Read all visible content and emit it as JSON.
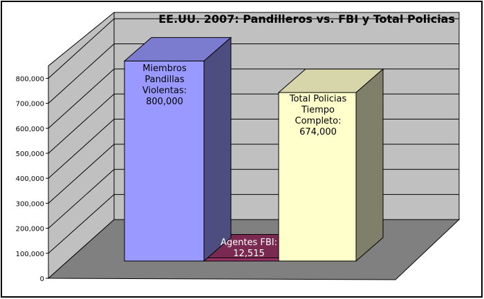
{
  "chart_data": {
    "type": "bar",
    "title": "EE.UU. 2007: Pandilleros vs. FBI y Total Policias",
    "xlabel": "",
    "ylabel": "",
    "ylim": [
      0,
      800000
    ],
    "y_ticks": [
      "0",
      "100,000",
      "200,000",
      "300,000",
      "400,000",
      "500,000",
      "600,000",
      "700,000",
      "800,000"
    ],
    "grid": true,
    "three_d": true,
    "categories": [
      "Miembros Pandillas Violentas",
      "Agentes FBI",
      "Total Policias Tiempo Completo"
    ],
    "values": [
      800000,
      12515,
      674000
    ],
    "data_labels": [
      [
        "Miembros",
        "Pandillas",
        "Violentas:",
        "800,000"
      ],
      [
        "Agentes FBI:",
        "12,515"
      ],
      [
        "Total Policias",
        "Tiempo",
        "Completo:",
        "674,000"
      ]
    ],
    "colors": {
      "bars_front": [
        "#9999ff",
        "#993366",
        "#ffffcc"
      ],
      "bars_side": [
        "#4d4d80",
        "#4d1a33",
        "#80806a"
      ],
      "bars_top": [
        "#7b7bcf",
        "#7a2950",
        "#d6d6aa"
      ],
      "wall": "#c0c0c0",
      "floor": "#808080",
      "gridline": "#000000",
      "border": "#000000"
    }
  }
}
